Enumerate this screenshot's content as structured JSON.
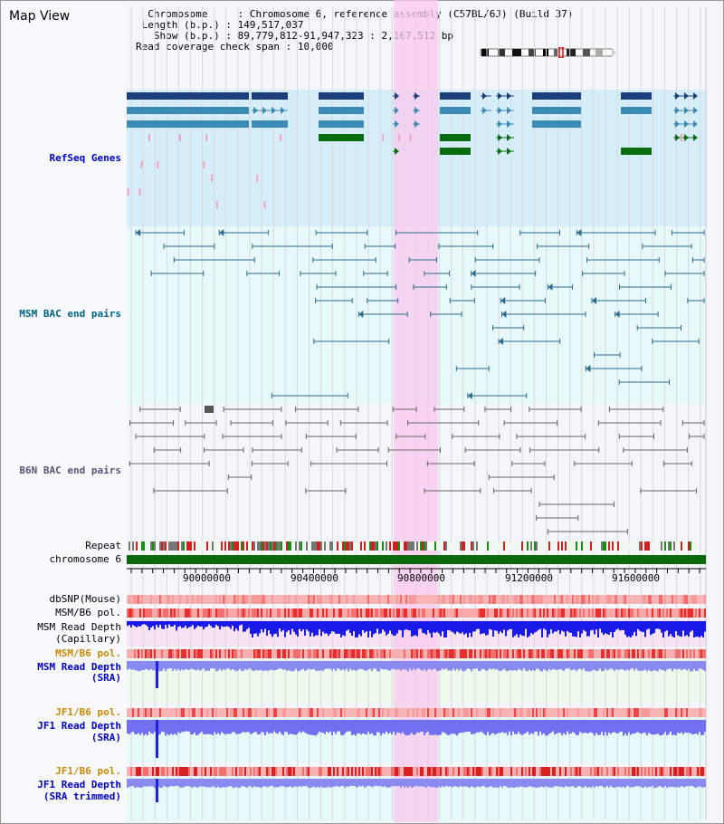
{
  "title": "Map View",
  "info": {
    "chromosome_label": "Chromosome",
    "chromosome_value": "Chromosome 6, reference assembly (C57BL/6J) (Build 37)",
    "length_label": "Length (b.p.)",
    "length_value": "149,517,037",
    "show_label": "Show (b.p.)",
    "show_value": "89,779,812-91,947,323 : 2,167,512 bp",
    "coverage_label": "Read coverage check span",
    "coverage_value": "10,000"
  },
  "tracks": {
    "refseq": "RefSeq Genes",
    "msm_bac": "MSM BAC end pairs",
    "b6n_bac": "B6N BAC end pairs",
    "repeat": "Repeat",
    "chromosome": "chromosome 6",
    "dbsnp": "dbSNP(Mouse)",
    "msm_b6_pol_1": "MSM/B6 pol.",
    "msm_depth_cap_1": "MSM Read Depth",
    "msm_depth_cap_2": "(Capillary)",
    "msm_b6_pol_2": "MSM/B6 pol.",
    "msm_depth_sra_1": "MSM Read Depth",
    "msm_depth_sra_2": "(SRA)",
    "jf1_b6_pol_1": "JF1/B6 pol.",
    "jf1_depth_sra_1": "JF1 Read Depth",
    "jf1_depth_sra_2": "(SRA)",
    "jf1_b6_pol_2": "JF1/B6 pol.",
    "jf1_depth_trim_1": "JF1 Read Depth",
    "jf1_depth_trim_2": "(SRA trimmed)"
  },
  "axis": {
    "ticks": [
      "90000000",
      "90400000",
      "90800000",
      "91200000",
      "91600000"
    ]
  },
  "colors": {
    "refseq_label": "#0000cc",
    "msm_label": "#006688",
    "b6n_label": "#555577",
    "orange_label": "#cc8800",
    "blue_label": "#0000cc",
    "highlight": "#f9c8ee"
  }
}
